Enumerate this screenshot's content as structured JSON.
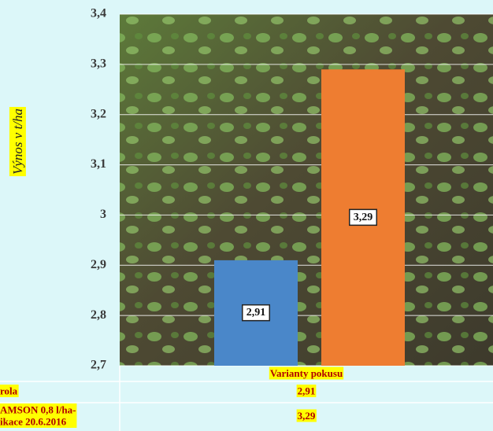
{
  "chart_data": {
    "type": "bar",
    "y_label": "Výnos v t/ha",
    "x_label": "Varianty pokusu",
    "categories": [
      "rola",
      "AMSON 0,8 l/ha-\nikace 20.6.2016"
    ],
    "values": [
      2.91,
      3.29
    ],
    "value_labels": [
      "2,91",
      "3,29"
    ],
    "colors": [
      "#4a87c9",
      "#ee7d31"
    ],
    "ylim": [
      2.7,
      3.4
    ],
    "yticks": [
      {
        "value": 2.7,
        "label": "2,7"
      },
      {
        "value": 2.8,
        "label": "2,8"
      },
      {
        "value": 2.9,
        "label": "2,9"
      },
      3,
      {
        "value": 3.1,
        "label": "3,1"
      },
      {
        "value": 3.2,
        "label": "3,2"
      },
      {
        "value": 3.3,
        "label": "3,3"
      },
      {
        "value": 3.4,
        "label": "3,4"
      }
    ],
    "grid": true
  }
}
